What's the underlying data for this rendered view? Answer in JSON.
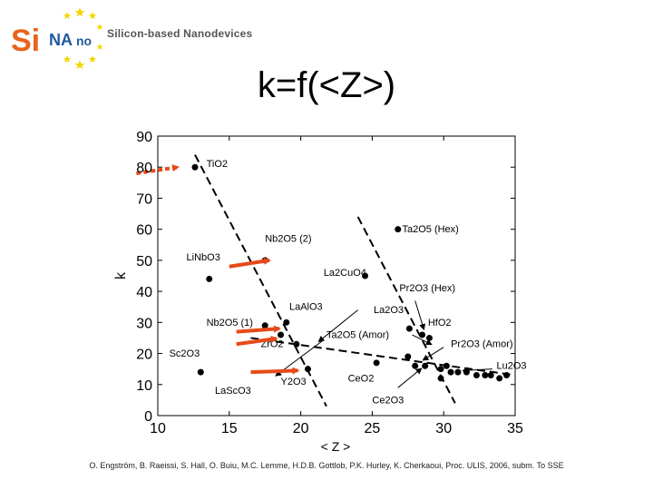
{
  "header": {
    "logo_word": "SiNANO",
    "logo_part_si": "Si",
    "logo_part_na": "NA",
    "logo_part_no": "no",
    "subtitle": "Silicon-based Nanodevices"
  },
  "slide": {
    "title": "k=f(<Z>)"
  },
  "footer": {
    "citation": "O. Engström, B. Raeissi, S. Hall, O. Buiu, M.C. Lemme, H.D.B. Gottlob, P.K. Hurley, K. Cherkaoui, Proc. ULIS, 2006, subm. To SSE"
  },
  "colors": {
    "arrow": "#e64a19",
    "marker": "#000000",
    "axis": "#000000",
    "logo_orange": "#e8641b",
    "logo_blue": "#1f5a9e",
    "logo_star": "#f2d600"
  },
  "chart_data": {
    "type": "scatter",
    "xlabel": "< Z >",
    "ylabel": "k",
    "xlim": [
      10,
      35
    ],
    "ylim": [
      0,
      90
    ],
    "xticks": [
      "10",
      "15",
      "20",
      "25",
      "30",
      "35"
    ],
    "yticks": [
      "0",
      "10",
      "20",
      "30",
      "40",
      "50",
      "60",
      "70",
      "80",
      "90"
    ],
    "points": [
      {
        "x": 12.6,
        "y": 80
      },
      {
        "x": 13.6,
        "y": 44
      },
      {
        "x": 17.5,
        "y": 50
      },
      {
        "x": 13.0,
        "y": 14
      },
      {
        "x": 17.5,
        "y": 29
      },
      {
        "x": 19.0,
        "y": 30
      },
      {
        "x": 18.6,
        "y": 26
      },
      {
        "x": 19.7,
        "y": 23
      },
      {
        "x": 20.5,
        "y": 15
      },
      {
        "x": 26.8,
        "y": 60
      },
      {
        "x": 24.5,
        "y": 45
      },
      {
        "x": 27.6,
        "y": 28
      },
      {
        "x": 28.5,
        "y": 26
      },
      {
        "x": 29.0,
        "y": 25
      },
      {
        "x": 25.3,
        "y": 17
      },
      {
        "x": 27.5,
        "y": 19
      },
      {
        "x": 28.0,
        "y": 16
      },
      {
        "x": 28.7,
        "y": 16
      },
      {
        "x": 29.8,
        "y": 15
      },
      {
        "x": 30.2,
        "y": 16
      },
      {
        "x": 30.5,
        "y": 14
      },
      {
        "x": 31.0,
        "y": 14
      },
      {
        "x": 31.6,
        "y": 14
      },
      {
        "x": 32.3,
        "y": 13
      },
      {
        "x": 32.9,
        "y": 13
      },
      {
        "x": 33.3,
        "y": 13
      },
      {
        "x": 33.9,
        "y": 12
      },
      {
        "x": 34.4,
        "y": 13
      },
      {
        "x": 29.8,
        "y": 12
      }
    ],
    "labels": [
      {
        "text": "TiO2",
        "x": 13.4,
        "y": 80
      },
      {
        "text": "Nb2O5 (2)",
        "x": 17.5,
        "y": 56
      },
      {
        "text": "LiNbO3",
        "x": 12.0,
        "y": 50
      },
      {
        "text": "Ta2O5 (Hex)",
        "x": 27.1,
        "y": 59
      },
      {
        "text": "La2CuO4",
        "x": 21.6,
        "y": 45
      },
      {
        "text": "Pr2O3 (Hex)",
        "x": 26.9,
        "y": 40
      },
      {
        "text": "LaAlO3",
        "x": 19.2,
        "y": 34
      },
      {
        "text": "La2O3",
        "x": 25.1,
        "y": 33
      },
      {
        "text": "Nb2O5 (1)",
        "x": 13.4,
        "y": 29
      },
      {
        "text": "HfO2",
        "x": 28.9,
        "y": 29
      },
      {
        "text": "ZrO2",
        "x": 17.2,
        "y": 22
      },
      {
        "text": "Ta2O5 (Amor)",
        "x": 21.8,
        "y": 25
      },
      {
        "text": "Pr2O3 (Amor)",
        "x": 30.5,
        "y": 22
      },
      {
        "text": "Sc2O3",
        "x": 10.8,
        "y": 19
      },
      {
        "text": "Y2O3",
        "x": 18.6,
        "y": 10
      },
      {
        "text": "CeO2",
        "x": 23.3,
        "y": 11
      },
      {
        "text": "Lu2O3",
        "x": 33.7,
        "y": 15
      },
      {
        "text": "LaScO3",
        "x": 14.0,
        "y": 7
      },
      {
        "text": "Ce2O3",
        "x": 25.0,
        "y": 4
      }
    ],
    "trend_lines": [
      {
        "name": "left trend",
        "x": [
          12.6,
          21.8
        ],
        "y": [
          84,
          3
        ]
      },
      {
        "name": "right trend",
        "x": [
          24.0,
          30.8
        ],
        "y": [
          64,
          4
        ]
      },
      {
        "name": "horizontal trend",
        "x": [
          16.5,
          35.0
        ],
        "y": [
          25,
          13
        ]
      }
    ],
    "arrows": [
      {
        "x1": 8.5,
        "y1": 78,
        "x2": 11.4,
        "y2": 80
      },
      {
        "x1": 15.0,
        "y1": 48,
        "x2": 17.8,
        "y2": 50
      },
      {
        "x1": 15.5,
        "y1": 27,
        "x2": 18.5,
        "y2": 28
      },
      {
        "x1": 15.5,
        "y1": 23,
        "x2": 18.3,
        "y2": 24.8
      },
      {
        "x1": 16.5,
        "y1": 14,
        "x2": 19.8,
        "y2": 14.5
      }
    ],
    "pointers": [
      {
        "x1": 28.0,
        "y1": 37,
        "x2": 28.6,
        "y2": 28
      },
      {
        "x1": 24.0,
        "y1": 34,
        "x2": 21.3,
        "y2": 24
      },
      {
        "x1": 21.5,
        "y1": 24,
        "x2": 18.3,
        "y2": 13
      },
      {
        "x1": 30.0,
        "y1": 22,
        "x2": 28.6,
        "y2": 18
      },
      {
        "x1": 33.4,
        "y1": 15,
        "x2": 31.4,
        "y2": 14.5
      },
      {
        "x1": 26.8,
        "y1": 9,
        "x2": 28.4,
        "y2": 15
      },
      {
        "x1": 27.8,
        "y1": 26,
        "x2": 29.1,
        "y2": 23
      }
    ]
  }
}
